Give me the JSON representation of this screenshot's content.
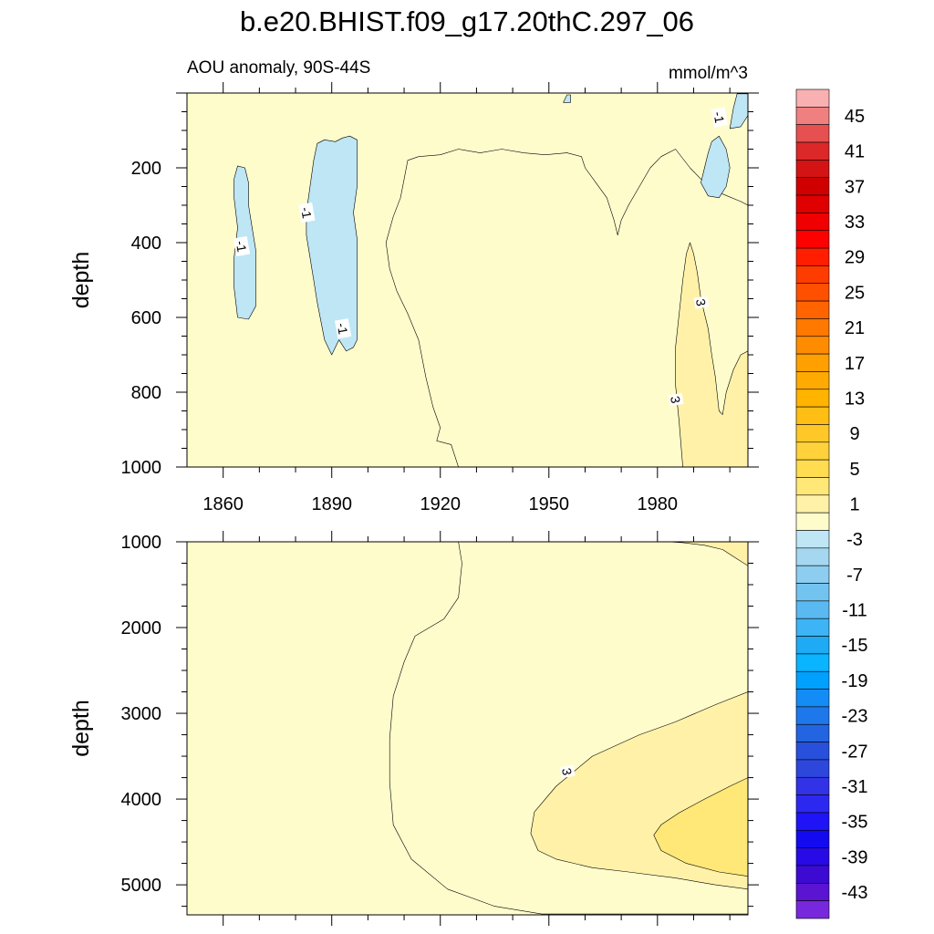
{
  "chart_data": {
    "type": "heatmap",
    "title": "b.e20.BHIST.f09_g17.20thC.297_06",
    "subtitle_left": "AOU anomaly, 90S-44S",
    "units": "mmol/m^3",
    "xlim": [
      1850,
      2005
    ],
    "x_ticks": [
      "1860",
      "1890",
      "1920",
      "1950",
      "1980"
    ],
    "x_tick_values": [
      1860,
      1890,
      1920,
      1950,
      1980
    ],
    "panels": [
      {
        "name": "upper",
        "ylabel": "depth",
        "ylim": [
          0,
          1000
        ],
        "y_ticks": [
          "200",
          "400",
          "600",
          "800",
          "1000"
        ],
        "y_tick_values": [
          200,
          400,
          600,
          800,
          1000
        ],
        "contour_labels": [
          {
            "text": "-1",
            "x": 1883,
            "y": 320
          },
          {
            "text": "-1",
            "x": 1865,
            "y": 410
          },
          {
            "text": "-1",
            "x": 1893,
            "y": 630
          },
          {
            "text": "-1",
            "x": 1997,
            "y": 65
          },
          {
            "text": "3",
            "x": 1992,
            "y": 560
          },
          {
            "text": "3",
            "x": 1985,
            "y": 820
          }
        ],
        "regions": [
          {
            "level": 1,
            "points": [
              [
                1925,
                1000
              ],
              [
                1923,
                940
              ],
              [
                1919,
                930
              ],
              [
                1920,
                895
              ],
              [
                1918,
                840
              ],
              [
                1916,
                760
              ],
              [
                1914,
                660
              ],
              [
                1911,
                590
              ],
              [
                1908,
                530
              ],
              [
                1906,
                470
              ],
              [
                1905,
                400
              ],
              [
                1907,
                330
              ],
              [
                1909,
                280
              ],
              [
                1910,
                230
              ],
              [
                1911,
                180
              ],
              [
                1914,
                170
              ],
              [
                1920,
                165
              ],
              [
                1925,
                150
              ],
              [
                1931,
                160
              ],
              [
                1937,
                150
              ],
              [
                1943,
                160
              ],
              [
                1949,
                165
              ],
              [
                1955,
                160
              ],
              [
                1959,
                170
              ],
              [
                1960,
                200
              ],
              [
                1963,
                240
              ],
              [
                1966,
                280
              ],
              [
                1968,
                340
              ],
              [
                1969,
                380
              ],
              [
                1970,
                340
              ],
              [
                1972,
                300
              ],
              [
                1975,
                250
              ],
              [
                1978,
                200
              ],
              [
                1981,
                170
              ],
              [
                1985,
                150
              ],
              [
                1989,
                200
              ],
              [
                1993,
                240
              ],
              [
                1998,
                270
              ],
              [
                2003,
                290
              ],
              [
                2005,
                300
              ],
              [
                2005,
                1000
              ]
            ]
          },
          {
            "level": 3,
            "points": [
              [
                1987,
                1000
              ],
              [
                1986,
                880
              ],
              [
                1985,
                780
              ],
              [
                1985,
                680
              ],
              [
                1986,
                590
              ],
              [
                1987,
                500
              ],
              [
                1988,
                430
              ],
              [
                1989,
                400
              ],
              [
                1990,
                430
              ],
              [
                1991,
                480
              ],
              [
                1992,
                550
              ],
              [
                1994,
                630
              ],
              [
                1995,
                700
              ],
              [
                1996,
                760
              ],
              [
                1997,
                850
              ],
              [
                1998,
                860
              ],
              [
                1999,
                800
              ],
              [
                2001,
                740
              ],
              [
                2003,
                700
              ],
              [
                2005,
                690
              ],
              [
                2005,
                1000
              ]
            ]
          },
          {
            "level": -3,
            "points": [
              [
                1864,
                600
              ],
              [
                1863,
                520
              ],
              [
                1863,
                440
              ],
              [
                1864,
                360
              ],
              [
                1863,
                280
              ],
              [
                1863,
                230
              ],
              [
                1864,
                195
              ],
              [
                1866,
                200
              ],
              [
                1867,
                240
              ],
              [
                1867,
                300
              ],
              [
                1868,
                360
              ],
              [
                1869,
                420
              ],
              [
                1869,
                500
              ],
              [
                1869,
                570
              ],
              [
                1867,
                605
              ]
            ]
          },
          {
            "level": -3,
            "points": [
              [
                1890,
                700
              ],
              [
                1888,
                660
              ],
              [
                1887,
                610
              ],
              [
                1886,
                560
              ],
              [
                1885,
                500
              ],
              [
                1884,
                440
              ],
              [
                1883,
                380
              ],
              [
                1883,
                320
              ],
              [
                1884,
                250
              ],
              [
                1885,
                180
              ],
              [
                1886,
                135
              ],
              [
                1888,
                125
              ],
              [
                1891,
                130
              ],
              [
                1893,
                120
              ],
              [
                1895,
                115
              ],
              [
                1897,
                125
              ],
              [
                1897,
                180
              ],
              [
                1897,
                250
              ],
              [
                1896,
                320
              ],
              [
                1897,
                390
              ],
              [
                1897,
                460
              ],
              [
                1897,
                530
              ],
              [
                1897,
                600
              ],
              [
                1897,
                660
              ],
              [
                1896,
                680
              ],
              [
                1894,
                690
              ],
              [
                1892,
                660
              ]
            ]
          },
          {
            "level": -3,
            "points": [
              [
                1994,
                275
              ],
              [
                1992,
                240
              ],
              [
                1993,
                200
              ],
              [
                1994,
                160
              ],
              [
                1995,
                130
              ],
              [
                1997,
                115
              ],
              [
                1999,
                150
              ],
              [
                2000,
                200
              ],
              [
                1999,
                250
              ],
              [
                1997,
                280
              ]
            ]
          },
          {
            "level": -3,
            "points": [
              [
                2000,
                95
              ],
              [
                2001,
                40
              ],
              [
                2002,
                2
              ],
              [
                2005,
                2
              ],
              [
                2005,
                60
              ],
              [
                2003,
                90
              ]
            ]
          },
          {
            "level": -3,
            "points": [
              [
                1954,
                25
              ],
              [
                1955,
                5
              ],
              [
                1956,
                5
              ],
              [
                1956,
                25
              ]
            ]
          }
        ]
      },
      {
        "name": "lower",
        "ylabel": "depth",
        "ylim": [
          1000,
          5350
        ],
        "y_ticks": [
          "1000",
          "2000",
          "3000",
          "4000",
          "5000"
        ],
        "y_tick_values": [
          1000,
          2000,
          3000,
          4000,
          5000
        ],
        "contour_labels": [
          {
            "text": "3",
            "x": 1955,
            "y": 3680
          }
        ],
        "regions": [
          {
            "level": 1,
            "points": [
              [
                1925,
                1000
              ],
              [
                1926,
                1250
              ],
              [
                1925,
                1650
              ],
              [
                1921,
                1900
              ],
              [
                1913,
                2100
              ],
              [
                1910,
                2400
              ],
              [
                1907,
                2800
              ],
              [
                1906,
                3300
              ],
              [
                1906,
                3800
              ],
              [
                1907,
                4300
              ],
              [
                1912,
                4700
              ],
              [
                1922,
                5050
              ],
              [
                1935,
                5250
              ],
              [
                1948,
                5340
              ],
              [
                2005,
                5340
              ],
              [
                2005,
                1000
              ]
            ]
          },
          {
            "level": 3,
            "points": [
              [
                1945,
                4400
              ],
              [
                1946,
                4150
              ],
              [
                1952,
                3850
              ],
              [
                1962,
                3500
              ],
              [
                1975,
                3250
              ],
              [
                1985,
                3100
              ],
              [
                1996,
                2900
              ],
              [
                2005,
                2750
              ],
              [
                2005,
                5050
              ],
              [
                1996,
                5000
              ],
              [
                1985,
                4920
              ],
              [
                1972,
                4850
              ],
              [
                1962,
                4800
              ],
              [
                1952,
                4700
              ],
              [
                1947,
                4600
              ]
            ]
          },
          {
            "level": 5,
            "points": [
              [
                1979,
                4420
              ],
              [
                1981,
                4300
              ],
              [
                1986,
                4160
              ],
              [
                1993,
                4000
              ],
              [
                2000,
                3850
              ],
              [
                2005,
                3750
              ],
              [
                2005,
                4900
              ],
              [
                1997,
                4850
              ],
              [
                1988,
                4750
              ],
              [
                1981,
                4600
              ]
            ]
          },
          {
            "level": 3,
            "points": [
              [
                1983,
                1000
              ],
              [
                1987,
                1010
              ],
              [
                1993,
                1040
              ],
              [
                1998,
                1090
              ],
              [
                2002,
                1200
              ],
              [
                2005,
                1280
              ],
              [
                2005,
                1000
              ]
            ]
          }
        ]
      }
    ],
    "colorbar": {
      "labels": [
        "45",
        "41",
        "37",
        "33",
        "29",
        "25",
        "21",
        "17",
        "13",
        "9",
        "5",
        "1",
        "-3",
        "-7",
        "-11",
        "-15",
        "-19",
        "-23",
        "-27",
        "-31",
        "-35",
        "-39",
        "-43"
      ],
      "label_values": [
        45,
        41,
        37,
        33,
        29,
        25,
        21,
        17,
        13,
        9,
        5,
        1,
        -3,
        -7,
        -11,
        -15,
        -19,
        -23,
        -27,
        -31,
        -35,
        -39,
        -43
      ],
      "levels_top_to_bottom": [
        47,
        45,
        43,
        41,
        39,
        37,
        35,
        33,
        31,
        29,
        27,
        25,
        23,
        21,
        19,
        17,
        15,
        13,
        11,
        9,
        7,
        5,
        3,
        1,
        -1,
        -3,
        -5,
        -7,
        -9,
        -11,
        -13,
        -15,
        -17,
        -19,
        -21,
        -23,
        -25,
        -27,
        -29,
        -31,
        -33,
        -35,
        -37,
        -39,
        -41,
        -43,
        -45
      ],
      "colors_top_to_bottom": [
        "#f9b0b0",
        "#f08080",
        "#e65050",
        "#dc2828",
        "#d41414",
        "#d00000",
        "#e00000",
        "#f00000",
        "#ff0000",
        "#ff1e00",
        "#ff3c00",
        "#ff5000",
        "#ff6400",
        "#ff7800",
        "#ff8c00",
        "#ffa000",
        "#ffaa00",
        "#ffb400",
        "#ffbe14",
        "#ffc828",
        "#ffd23c",
        "#ffdc50",
        "#ffe878",
        "#fff2a8",
        "#fffccc",
        "#bee6f5",
        "#a5d8f0",
        "#8ccdf0",
        "#73c3f0",
        "#5ab9f0",
        "#3cb4f5",
        "#1eaaf5",
        "#0ab4ff",
        "#00a0ff",
        "#148cf5",
        "#1e78eb",
        "#2364e1",
        "#2850dc",
        "#2d46dc",
        "#3232e6",
        "#2d28f0",
        "#1e14f5",
        "#140af0",
        "#280ae6",
        "#3c0ad2",
        "#5a14d2",
        "#7828dc"
      ]
    },
    "level_colors": {
      "-3": "#bee6f5",
      "1": "#fffccc",
      "3": "#fff2a8",
      "5": "#ffe878"
    }
  }
}
